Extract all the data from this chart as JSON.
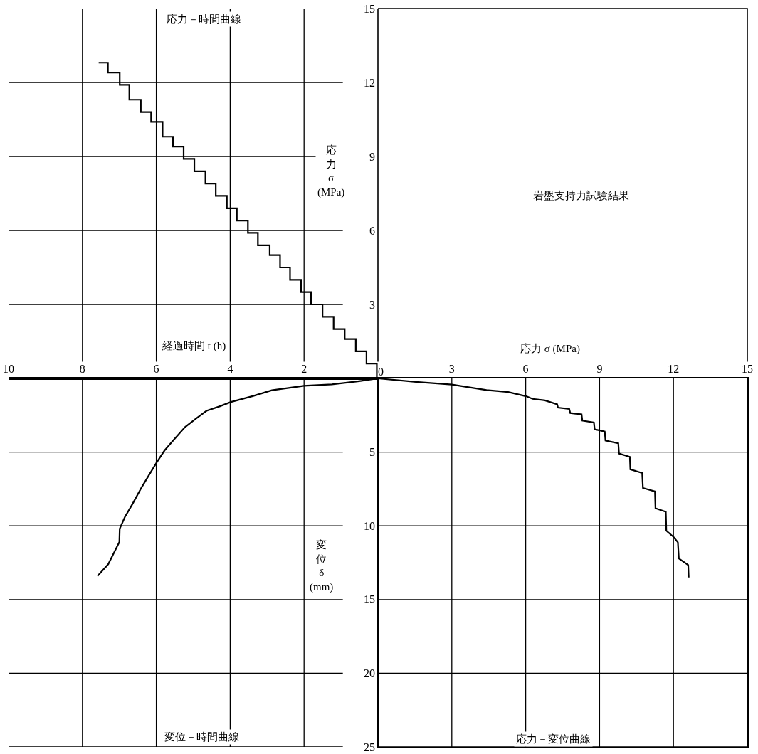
{
  "chart_data": [
    {
      "type": "step",
      "title": "応力－時間曲線",
      "ylabel": "応力 σ (MPa)",
      "x": [
        0,
        0.03,
        0.31,
        0.6,
        0.9,
        1.2,
        1.5,
        1.81,
        2.08,
        2.38,
        2.65,
        2.93,
        3.25,
        3.52,
        3.82,
        4.09,
        4.39,
        4.67,
        4.97,
        5.26,
        5.55,
        5.83,
        6.14,
        6.42,
        6.73,
        6.99,
        7.31,
        7.56
      ],
      "series": [
        {
          "color": "#000000",
          "values": [
            0,
            0.6,
            1.1,
            1.6,
            2.0,
            2.5,
            3.0,
            3.5,
            4.0,
            4.5,
            5.0,
            5.4,
            5.9,
            6.4,
            6.9,
            7.4,
            7.9,
            8.4,
            8.9,
            9.4,
            9.8,
            10.4,
            10.8,
            11.3,
            11.9,
            12.4,
            12.8,
            12.8
          ]
        }
      ],
      "xlim": [
        10,
        0
      ],
      "xticks": [
        10,
        8,
        6,
        4,
        2
      ],
      "ylim": [
        0,
        15
      ],
      "yticks": [
        3,
        6,
        9,
        12,
        15
      ],
      "grid": true,
      "tick_labels": "y"
    },
    {
      "type": "other",
      "title": "岩盤支持力試験結果"
    },
    {
      "type": "line",
      "title": "変位－時間曲線",
      "xlabel": "経過時間 t (h)",
      "ylabel": "変位 δ (mm)",
      "x": [
        0,
        0.55,
        1.25,
        2.0,
        2.28,
        2.87,
        3.39,
        3.98,
        4.29,
        4.64,
        4.91,
        5.22,
        5.54,
        5.78,
        5.99,
        6.16,
        6.4,
        6.64,
        6.85,
        6.99,
        7.0,
        7.3,
        7.59
      ],
      "series": [
        {
          "color": "#000000",
          "values": [
            0,
            0.2,
            0.4,
            0.5,
            0.6,
            0.8,
            1.2,
            1.6,
            1.9,
            2.2,
            2.7,
            3.3,
            4.2,
            4.9,
            5.7,
            6.4,
            7.4,
            8.5,
            9.4,
            10.2,
            11.1,
            12.6,
            13.4
          ]
        }
      ],
      "xlim": [
        10,
        0
      ],
      "xticks": [
        10,
        8,
        6,
        4,
        2
      ],
      "ylim": [
        25,
        0
      ],
      "yticks": [
        5,
        10,
        15,
        20,
        25
      ],
      "grid": true
    },
    {
      "type": "line",
      "title": "応力－変位曲線",
      "xlabel": "応力 σ (MPa)",
      "x": [
        0,
        1.54,
        3.0,
        4.41,
        5.29,
        6.02,
        6.28,
        6.78,
        7.28,
        7.31,
        7.77,
        7.81,
        8.27,
        8.3,
        8.77,
        8.8,
        9.21,
        9.24,
        9.76,
        9.79,
        10.23,
        10.25,
        10.73,
        10.76,
        11.25,
        11.27,
        11.69,
        11.71,
        12.0,
        12.18,
        12.22,
        12.6,
        12.62
      ],
      "series": [
        {
          "color": "#000000",
          "values": [
            0,
            0.24,
            0.42,
            0.79,
            0.92,
            1.21,
            1.39,
            1.49,
            1.76,
            1.98,
            2.07,
            2.35,
            2.44,
            2.86,
            2.99,
            3.45,
            3.6,
            4.22,
            4.4,
            5.1,
            5.32,
            6.17,
            6.42,
            7.43,
            7.67,
            8.81,
            9.05,
            10.33,
            10.75,
            11.12,
            12.22,
            12.66,
            13.5
          ]
        }
      ],
      "xlim": [
        0,
        15
      ],
      "xticks": [
        0,
        3,
        6,
        9,
        12,
        15
      ],
      "ylim": [
        25,
        0
      ],
      "yticks": [
        5,
        10,
        15,
        20,
        25
      ],
      "grid": true,
      "tick_labels": "x"
    }
  ]
}
